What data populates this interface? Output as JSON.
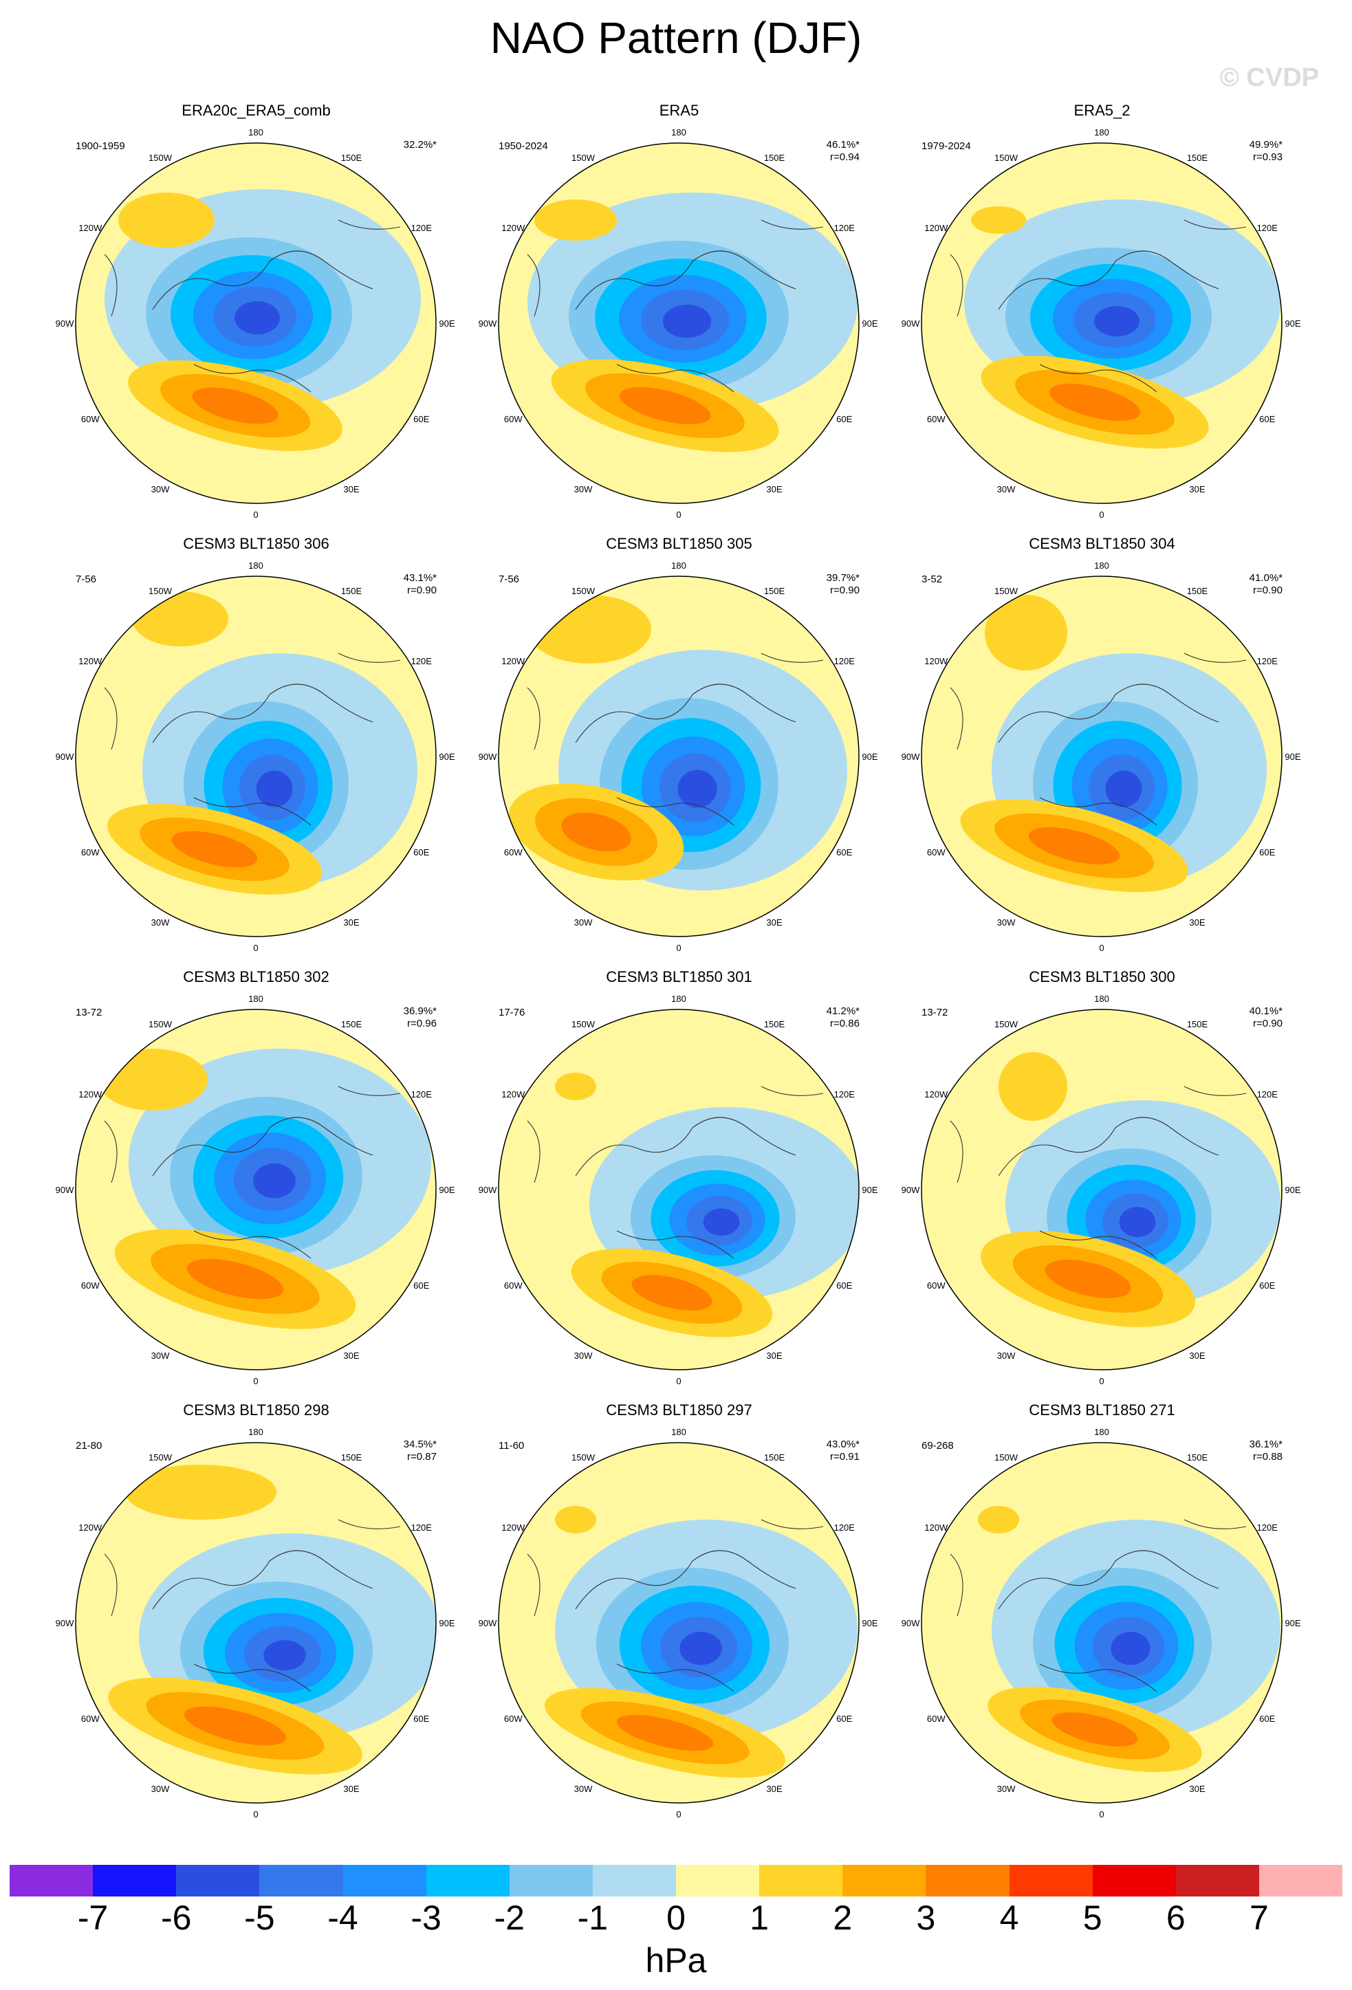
{
  "figure": {
    "title": "NAO Pattern (DJF)",
    "watermark": "© CVDP",
    "longitude_labels": [
      "180",
      "150E",
      "120E",
      "90E",
      "60E",
      "30E",
      "0",
      "30W",
      "60W",
      "90W",
      "120W",
      "150W"
    ]
  },
  "panels": [
    {
      "title": "ERA20c_ERA5_comb",
      "period": "1900-1959",
      "variance": "32.2%*",
      "corr": ""
    },
    {
      "title": "ERA5",
      "period": "1950-2024",
      "variance": "46.1%*",
      "corr": "r=0.94"
    },
    {
      "title": "ERA5_2",
      "period": "1979-2024",
      "variance": "49.9%*",
      "corr": "r=0.93"
    },
    {
      "title": "CESM3 BLT1850 306",
      "period": "7-56",
      "variance": "43.1%*",
      "corr": "r=0.90"
    },
    {
      "title": "CESM3 BLT1850 305",
      "period": "7-56",
      "variance": "39.7%*",
      "corr": "r=0.90"
    },
    {
      "title": "CESM3 BLT1850 304",
      "period": "3-52",
      "variance": "41.0%*",
      "corr": "r=0.90"
    },
    {
      "title": "CESM3 BLT1850 302",
      "period": "13-72",
      "variance": "36.9%*",
      "corr": "r=0.96"
    },
    {
      "title": "CESM3 BLT1850 301",
      "period": "17-76",
      "variance": "41.2%*",
      "corr": "r=0.86"
    },
    {
      "title": "CESM3 BLT1850 300",
      "period": "13-72",
      "variance": "40.1%*",
      "corr": "r=0.90"
    },
    {
      "title": "CESM3 BLT1850 298",
      "period": "21-80",
      "variance": "34.5%*",
      "corr": "r=0.87"
    },
    {
      "title": "CESM3 BLT1850 297",
      "period": "11-60",
      "variance": "43.0%*",
      "corr": "r=0.91"
    },
    {
      "title": "CESM3 BLT1850 271",
      "period": "69-268",
      "variance": "36.1%*",
      "corr": "r=0.88"
    }
  ],
  "colorbar": {
    "units": "hPa",
    "labels": [
      "-7",
      "-6",
      "-5",
      "-4",
      "-3",
      "-2",
      "-1",
      "0",
      "1",
      "2",
      "3",
      "4",
      "5",
      "6",
      "7"
    ],
    "colors": [
      "#8a2be2",
      "#1414ff",
      "#2a4fe0",
      "#3578ec",
      "#1e90ff",
      "#00bfff",
      "#7ec8f0",
      "#b0dcf2",
      "#fff8a0",
      "#ffd42a",
      "#ffaa00",
      "#ff7f00",
      "#ff3a00",
      "#ee0000",
      "#cc1f1f",
      "#ffb0b0"
    ],
    "neutral_negative": "#b0dcf2",
    "neutral_positive": "#fff8a0"
  }
}
